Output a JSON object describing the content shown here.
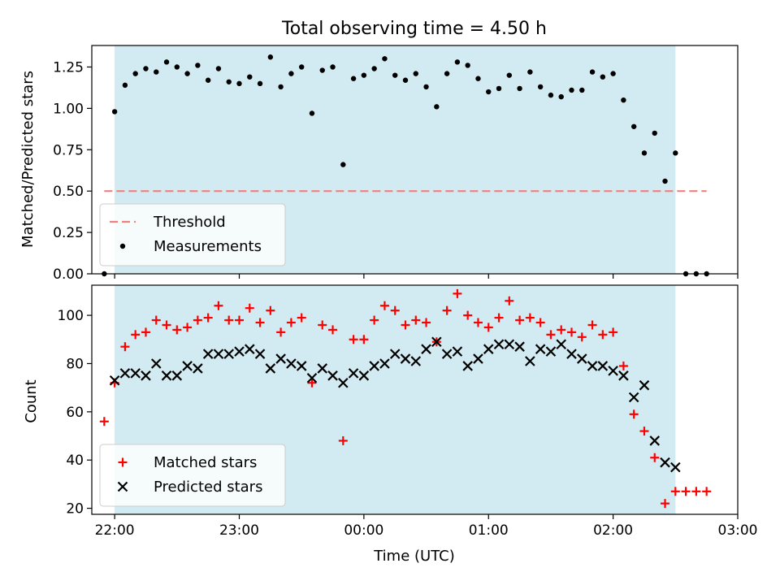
{
  "colors": {
    "shade": "#add8e6",
    "threshold": "#f08080",
    "matched": "#ff0000",
    "predicted": "#000000",
    "measurement": "#000000"
  },
  "chart_data": [
    {
      "type": "scatter",
      "title": "Total observing time = 4.50 h",
      "xlabel": "",
      "ylabel": "Matched/Predicted stars",
      "ylim": [
        0,
        1.38
      ],
      "xlim": [
        "21:49",
        "03:00"
      ],
      "xticks": [
        "22:00",
        "23:00",
        "00:00",
        "01:00",
        "02:00",
        "03:00"
      ],
      "yticks": [
        "0.00",
        "0.25",
        "0.50",
        "0.75",
        "1.00",
        "1.25"
      ],
      "ytick_values": [
        0,
        0.25,
        0.5,
        0.75,
        1.0,
        1.25
      ],
      "shaded_span": [
        "22:00",
        "02:30"
      ],
      "threshold": {
        "label": "Threshold",
        "value": 0.5,
        "from": "21:55",
        "to": "02:45"
      },
      "legend": {
        "placement": "lower-left",
        "entries": [
          "Threshold",
          "Measurements"
        ]
      },
      "series": [
        {
          "name": "Measurements",
          "x": [
            "21:55",
            "22:00",
            "22:05",
            "22:10",
            "22:15",
            "22:20",
            "22:25",
            "22:30",
            "22:35",
            "22:40",
            "22:45",
            "22:50",
            "22:55",
            "23:00",
            "23:05",
            "23:10",
            "23:15",
            "23:20",
            "23:25",
            "23:30",
            "23:35",
            "23:40",
            "23:45",
            "23:50",
            "23:55",
            "00:00",
            "00:05",
            "00:10",
            "00:15",
            "00:20",
            "00:25",
            "00:30",
            "00:35",
            "00:40",
            "00:45",
            "00:50",
            "00:55",
            "01:00",
            "01:05",
            "01:10",
            "01:15",
            "01:20",
            "01:25",
            "01:30",
            "01:35",
            "01:40",
            "01:45",
            "01:50",
            "01:55",
            "02:00",
            "02:05",
            "02:10",
            "02:15",
            "02:20",
            "02:25",
            "02:30",
            "02:35",
            "02:40",
            "02:45"
          ],
          "y": [
            0.0,
            0.98,
            1.14,
            1.21,
            1.24,
            1.22,
            1.28,
            1.25,
            1.21,
            1.26,
            1.17,
            1.24,
            1.16,
            1.15,
            1.19,
            1.15,
            1.31,
            1.13,
            1.21,
            1.25,
            0.97,
            1.23,
            1.25,
            0.66,
            1.18,
            1.2,
            1.24,
            1.3,
            1.2,
            1.17,
            1.21,
            1.13,
            1.01,
            1.21,
            1.28,
            1.26,
            1.18,
            1.1,
            1.12,
            1.2,
            1.12,
            1.22,
            1.13,
            1.08,
            1.07,
            1.11,
            1.11,
            1.22,
            1.19,
            1.21,
            1.05,
            0.89,
            0.73,
            0.85,
            0.56,
            0.73,
            0.0,
            0.0,
            0.0
          ]
        }
      ]
    },
    {
      "type": "scatter",
      "title": "",
      "xlabel": "Time (UTC)",
      "ylabel": "Count",
      "ylim": [
        17.5,
        112.5
      ],
      "xlim": [
        "21:49",
        "03:00"
      ],
      "xticks": [
        "22:00",
        "23:00",
        "00:00",
        "01:00",
        "02:00",
        "03:00"
      ],
      "yticks": [
        "20",
        "40",
        "60",
        "80",
        "100"
      ],
      "ytick_values": [
        20,
        40,
        60,
        80,
        100
      ],
      "shaded_span": [
        "22:00",
        "02:30"
      ],
      "legend": {
        "placement": "lower-left",
        "entries": [
          "Matched stars",
          "Predicted stars"
        ]
      },
      "series": [
        {
          "name": "Matched stars",
          "marker": "+",
          "x": [
            "21:55",
            "22:00",
            "22:05",
            "22:10",
            "22:15",
            "22:20",
            "22:25",
            "22:30",
            "22:35",
            "22:40",
            "22:45",
            "22:50",
            "22:55",
            "23:00",
            "23:05",
            "23:10",
            "23:15",
            "23:20",
            "23:25",
            "23:30",
            "23:35",
            "23:40",
            "23:45",
            "23:50",
            "23:55",
            "00:00",
            "00:05",
            "00:10",
            "00:15",
            "00:20",
            "00:25",
            "00:30",
            "00:35",
            "00:40",
            "00:45",
            "00:50",
            "00:55",
            "01:00",
            "01:05",
            "01:10",
            "01:15",
            "01:20",
            "01:25",
            "01:30",
            "01:35",
            "01:40",
            "01:45",
            "01:50",
            "01:55",
            "02:00",
            "02:05",
            "02:10",
            "02:15",
            "02:20",
            "02:25",
            "02:30",
            "02:35",
            "02:40",
            "02:45"
          ],
          "y": [
            56,
            72,
            87,
            92,
            93,
            98,
            96,
            94,
            95,
            98,
            99,
            104,
            98,
            98,
            103,
            97,
            102,
            93,
            97,
            99,
            72,
            96,
            94,
            48,
            90,
            90,
            98,
            104,
            102,
            96,
            98,
            97,
            89,
            102,
            109,
            100,
            97,
            95,
            99,
            106,
            98,
            99,
            97,
            92,
            94,
            93,
            91,
            96,
            92,
            93,
            79,
            59,
            52,
            41,
            22,
            27,
            27,
            27,
            27
          ]
        },
        {
          "name": "Predicted stars",
          "marker": "x",
          "x": [
            "22:00",
            "22:05",
            "22:10",
            "22:15",
            "22:20",
            "22:25",
            "22:30",
            "22:35",
            "22:40",
            "22:45",
            "22:50",
            "22:55",
            "23:00",
            "23:05",
            "23:10",
            "23:15",
            "23:20",
            "23:25",
            "23:30",
            "23:35",
            "23:40",
            "23:45",
            "23:50",
            "23:55",
            "00:00",
            "00:05",
            "00:10",
            "00:15",
            "00:20",
            "00:25",
            "00:30",
            "00:35",
            "00:40",
            "00:45",
            "00:50",
            "00:55",
            "01:00",
            "01:05",
            "01:10",
            "01:15",
            "01:20",
            "01:25",
            "01:30",
            "01:35",
            "01:40",
            "01:45",
            "01:50",
            "01:55",
            "02:00",
            "02:05",
            "02:10",
            "02:15",
            "02:20",
            "02:25",
            "02:30"
          ],
          "y": [
            73,
            76,
            76,
            75,
            80,
            75,
            75,
            79,
            78,
            84,
            84,
            84,
            85,
            86,
            84,
            78,
            82,
            80,
            79,
            74,
            78,
            75,
            72,
            76,
            75,
            79,
            80,
            84,
            82,
            81,
            86,
            89,
            84,
            85,
            79,
            82,
            86,
            88,
            88,
            87,
            81,
            86,
            85,
            88,
            84,
            82,
            79,
            79,
            77,
            75,
            66,
            71,
            48,
            39,
            37
          ]
        }
      ]
    }
  ]
}
